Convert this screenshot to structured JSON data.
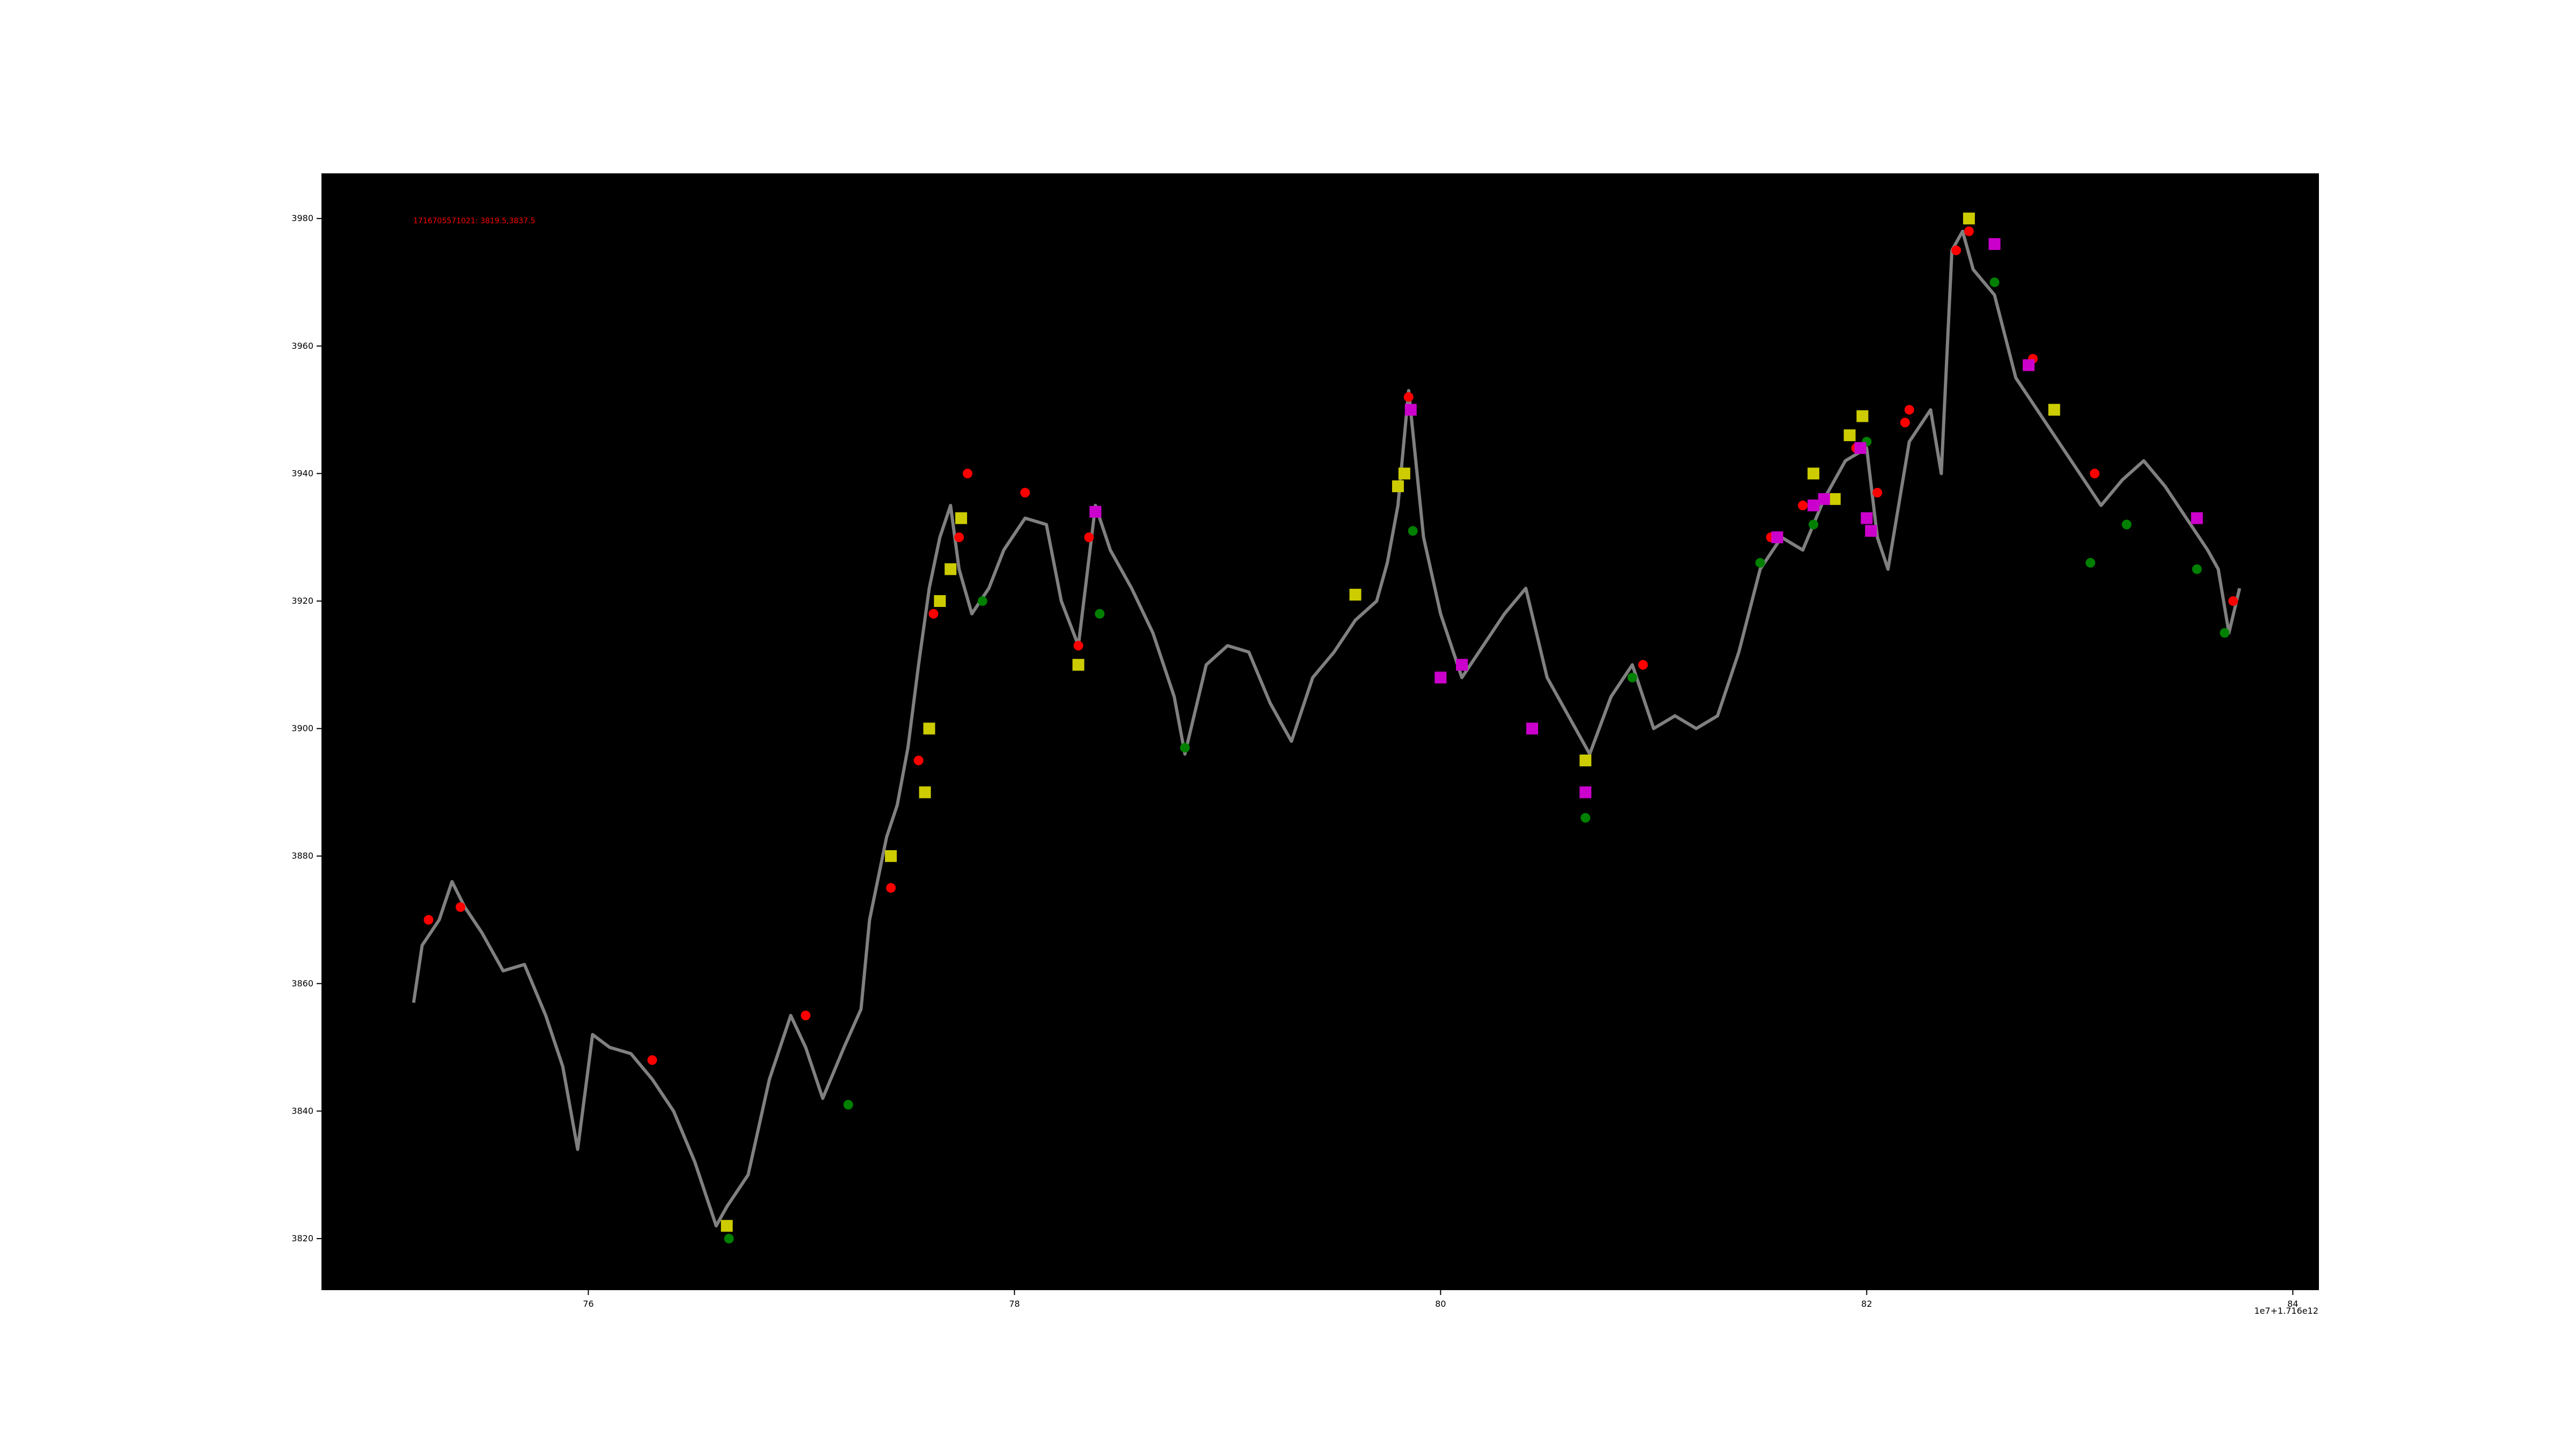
{
  "chart_data": {
    "type": "scatter",
    "annotation": "1716705571021: 3819.5,3837.5",
    "x_offset_label": "1e7+1.716e12",
    "xlim": [
      74.75,
      84.12
    ],
    "ylim": [
      3812,
      3987
    ],
    "xticks": [
      76,
      78,
      80,
      82,
      84
    ],
    "yticks": [
      3820,
      3840,
      3860,
      3880,
      3900,
      3920,
      3940,
      3960,
      3980
    ],
    "grid": false,
    "legend": "none",
    "colors": {
      "background": "#000000",
      "price": "#808080",
      "buy": "#ff0000",
      "sell": "#008000",
      "entry": "#cccc00",
      "exit": "#cc00cc",
      "annotation": "#ff0000"
    },
    "series": [
      {
        "role": "price",
        "x": [
          75.18,
          75.22,
          75.3,
          75.36,
          75.42,
          75.5,
          75.6,
          75.7,
          75.8,
          75.88,
          75.95,
          76.02,
          76.1,
          76.2,
          76.3,
          76.4,
          76.5,
          76.6,
          76.65,
          76.75,
          76.85,
          76.95,
          77.02,
          77.1,
          77.2,
          77.28,
          77.32,
          77.4,
          77.45,
          77.5,
          77.55,
          77.6,
          77.65,
          77.7,
          77.74,
          77.8,
          77.88,
          77.95,
          78.05,
          78.15,
          78.22,
          78.3,
          78.38,
          78.45,
          78.55,
          78.65,
          78.75,
          78.8,
          78.9,
          79.0,
          79.1,
          79.2,
          79.3,
          79.4,
          79.5,
          79.6,
          79.7,
          79.75,
          79.8,
          79.85,
          79.92,
          80.0,
          80.1,
          80.2,
          80.3,
          80.4,
          80.5,
          80.6,
          80.7,
          80.8,
          80.9,
          81.0,
          81.1,
          81.2,
          81.3,
          81.4,
          81.5,
          81.6,
          81.7,
          81.8,
          81.9,
          82.0,
          82.05,
          82.1,
          82.2,
          82.3,
          82.35,
          82.4,
          82.45,
          82.5,
          82.6,
          82.7,
          82.8,
          82.9,
          83.0,
          83.1,
          83.2,
          83.3,
          83.4,
          83.5,
          83.6,
          83.65,
          83.7,
          83.75
        ],
        "y": [
          3857,
          3866,
          3870,
          3876,
          3872,
          3868,
          3862,
          3863,
          3855,
          3847,
          3834,
          3852,
          3850,
          3849,
          3845,
          3840,
          3832,
          3822,
          3825,
          3830,
          3845,
          3855,
          3850,
          3842,
          3850,
          3856,
          3870,
          3883,
          3888,
          3897,
          3910,
          3922,
          3930,
          3935,
          3925,
          3918,
          3922,
          3928,
          3933,
          3932,
          3920,
          3913,
          3935,
          3928,
          3922,
          3915,
          3905,
          3896,
          3910,
          3913,
          3912,
          3904,
          3898,
          3908,
          3912,
          3917,
          3920,
          3926,
          3935,
          3953,
          3930,
          3918,
          3908,
          3913,
          3918,
          3922,
          3908,
          3902,
          3896,
          3905,
          3910,
          3900,
          3902,
          3900,
          3902,
          3912,
          3925,
          3930,
          3928,
          3936,
          3942,
          3944,
          3930,
          3925,
          3945,
          3950,
          3940,
          3975,
          3978,
          3972,
          3968,
          3955,
          3950,
          3945,
          3940,
          3935,
          3939,
          3942,
          3938,
          3933,
          3928,
          3925,
          3915,
          3922
        ]
      },
      {
        "role": "buy",
        "x": [
          75.25,
          75.4,
          76.3,
          77.02,
          77.42,
          77.55,
          77.62,
          77.74,
          77.78,
          78.05,
          78.3,
          78.35,
          79.85,
          80.95,
          81.55,
          81.7,
          81.95,
          82.05,
          82.18,
          82.2,
          82.42,
          82.48,
          82.78,
          83.07,
          83.72
        ],
        "y": [
          3870,
          3872,
          3848,
          3855,
          3875,
          3895,
          3918,
          3930,
          3940,
          3937,
          3913,
          3930,
          3952,
          3910,
          3930,
          3935,
          3944,
          3937,
          3948,
          3950,
          3975,
          3978,
          3958,
          3940,
          3920
        ]
      },
      {
        "role": "sell",
        "x": [
          76.66,
          77.22,
          77.85,
          78.4,
          78.8,
          79.87,
          80.68,
          80.9,
          81.5,
          81.75,
          82.0,
          82.6,
          83.05,
          83.22,
          83.55,
          83.68
        ],
        "y": [
          3820,
          3841,
          3920,
          3918,
          3897,
          3931,
          3886,
          3908,
          3926,
          3932,
          3945,
          3970,
          3926,
          3932,
          3925,
          3915
        ]
      },
      {
        "role": "entry",
        "x": [
          76.65,
          77.42,
          77.58,
          77.6,
          77.65,
          77.7,
          77.75,
          78.3,
          79.6,
          79.8,
          79.83,
          80.68,
          81.75,
          81.85,
          81.92,
          81.98,
          82.48,
          82.88
        ],
        "y": [
          3822,
          3880,
          3890,
          3900,
          3920,
          3925,
          3933,
          3910,
          3921,
          3938,
          3940,
          3895,
          3940,
          3936,
          3946,
          3949,
          3980,
          3950
        ]
      },
      {
        "role": "exit",
        "x": [
          78.38,
          79.86,
          80.0,
          80.1,
          80.43,
          80.68,
          81.58,
          81.75,
          81.8,
          81.97,
          82.0,
          82.02,
          82.6,
          82.76,
          83.55
        ],
        "y": [
          3934,
          3950,
          3908,
          3910,
          3900,
          3890,
          3930,
          3935,
          3936,
          3944,
          3933,
          3931,
          3976,
          3957,
          3933
        ]
      }
    ]
  }
}
